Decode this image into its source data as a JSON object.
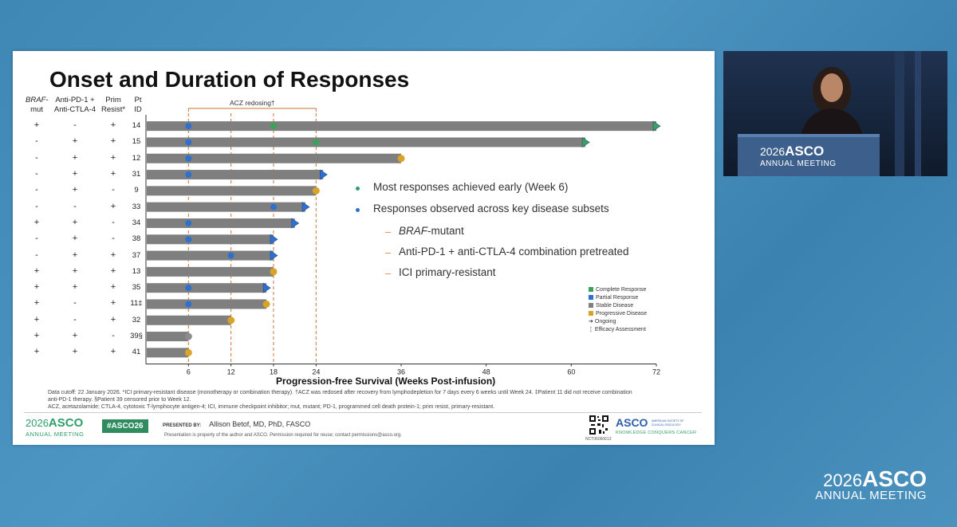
{
  "slide": {
    "title": "Onset and Duration of Responses",
    "col_headers": {
      "braf": [
        "BRAF-",
        "mut"
      ],
      "antipd1": [
        "Anti-PD-1 +",
        "Anti-CTLA-4"
      ],
      "prim": [
        "Prim",
        "Resist*"
      ],
      "pt": [
        "Pt",
        "ID"
      ]
    },
    "redosing_label": "ACZ redosing†",
    "bullets": [
      "Most responses achieved early (Week 6)",
      "Responses observed across key disease subsets"
    ],
    "sub_bullets": [
      "BRAF-mutant",
      "Anti-PD-1 + anti-CTLA-4 combination pretreated",
      "ICI primary-resistant"
    ],
    "legend": [
      {
        "label": "Complete Response",
        "color": "#3aa35b"
      },
      {
        "label": "Partial Response",
        "color": "#2f6fce"
      },
      {
        "label": "Stable Disease",
        "color": "#7f7f7f"
      },
      {
        "label": "Progressive Disease",
        "color": "#d9a325"
      },
      {
        "label": "Ongoing",
        "symbol": "arrow"
      },
      {
        "label": "Efficacy Assessment",
        "symbol": "tick"
      }
    ],
    "footnotes": [
      "Data cutoff: 22 January 2026. *ICI primary-resistant disease (monotherapy or combination therapy). †ACZ was redosed after recovery from lymphodepletion for 7 days every 6 weeks until Week 24. ‡Patient 11 did not receive combination",
      "anti-PD-1 therapy. §Patient 39 censored prior to Week 12.",
      "ACZ, acetazolamide; CTLA-4, cytotoxic T-lymphocyte antigen-4; ICI, immune checkpoint inhibitor; mut, mutant; PD-1, programmed cell death protein-1; prim resist, primary-resistant."
    ],
    "brand_year": "2026",
    "brand_name": "ASCO",
    "brand_sub": "ANNUAL MEETING",
    "hashtag": "#ASCO26",
    "presented_by_label": "PRESENTED BY:",
    "presenter": "Allison Betof, MD, PhD, FASCO",
    "property_note": "Presentation is property of the author and ASCO. Permission required for reuse; contact permissions@asco.org.",
    "nct": "NCT06060613",
    "asco_logo_text": "ASCO",
    "asco_logo_small": "AMERICAN SOCIETY OF CLINICAL ONCOLOGY",
    "asco_tagline": "KNOWLEDGE CONQUERS CANCER"
  },
  "video": {
    "podium_year": "2026",
    "podium_name": "ASCO",
    "podium_sub": "ANNUAL MEETING"
  },
  "corner_brand": {
    "year": "2026",
    "name": "ASCO",
    "sub": "ANNUAL MEETING"
  },
  "chart_data": {
    "type": "bar",
    "orientation": "horizontal",
    "xlabel": "Progression-free Survival (Weeks Post-infusion)",
    "x_ticks": [
      6,
      12,
      18,
      24,
      36,
      48,
      60,
      72
    ],
    "xlim": [
      0,
      72
    ],
    "reference_lines": [
      6,
      12,
      18,
      24
    ],
    "patients": [
      {
        "id": "14",
        "braf": "+",
        "antipd1": "-",
        "prim": "+",
        "pfs": 72,
        "ongoing": true,
        "outcome": "CR",
        "events": [
          {
            "t": 6,
            "type": "PR"
          },
          {
            "t": 18,
            "type": "CR"
          }
        ]
      },
      {
        "id": "15",
        "braf": "-",
        "antipd1": "+",
        "prim": "+",
        "pfs": 62,
        "ongoing": true,
        "outcome": "CR",
        "events": [
          {
            "t": 6,
            "type": "PR"
          },
          {
            "t": 24,
            "type": "CR"
          }
        ]
      },
      {
        "id": "12",
        "braf": "-",
        "antipd1": "+",
        "prim": "+",
        "pfs": 36,
        "ongoing": false,
        "outcome": "PD",
        "events": [
          {
            "t": 6,
            "type": "PR"
          }
        ]
      },
      {
        "id": "31",
        "braf": "-",
        "antipd1": "+",
        "prim": "+",
        "pfs": 25,
        "ongoing": true,
        "outcome": "PR",
        "events": [
          {
            "t": 6,
            "type": "PR"
          }
        ]
      },
      {
        "id": "9",
        "braf": "-",
        "antipd1": "+",
        "prim": "-",
        "pfs": 24,
        "ongoing": false,
        "outcome": "PD",
        "events": []
      },
      {
        "id": "33",
        "braf": "-",
        "antipd1": "-",
        "prim": "+",
        "pfs": 22.5,
        "ongoing": true,
        "outcome": "PR",
        "events": [
          {
            "t": 18,
            "type": "PR"
          }
        ]
      },
      {
        "id": "34",
        "braf": "+",
        "antipd1": "+",
        "prim": "-",
        "pfs": 21,
        "ongoing": true,
        "outcome": "PR",
        "events": [
          {
            "t": 6,
            "type": "PR"
          }
        ]
      },
      {
        "id": "38",
        "braf": "-",
        "antipd1": "+",
        "prim": "-",
        "pfs": 18,
        "ongoing": true,
        "outcome": "PR",
        "events": [
          {
            "t": 6,
            "type": "PR"
          }
        ]
      },
      {
        "id": "37",
        "braf": "-",
        "antipd1": "+",
        "prim": "+",
        "pfs": 18,
        "ongoing": true,
        "outcome": "PR",
        "events": [
          {
            "t": 12,
            "type": "PR"
          }
        ]
      },
      {
        "id": "13",
        "braf": "+",
        "antipd1": "+",
        "prim": "+",
        "pfs": 18,
        "ongoing": false,
        "outcome": "PD",
        "events": []
      },
      {
        "id": "35",
        "braf": "+",
        "antipd1": "+",
        "prim": "+",
        "pfs": 17,
        "ongoing": true,
        "outcome": "PR",
        "events": [
          {
            "t": 6,
            "type": "PR"
          }
        ]
      },
      {
        "id": "11‡",
        "braf": "+",
        "antipd1": "-",
        "prim": "+",
        "pfs": 17,
        "ongoing": false,
        "outcome": "PD",
        "events": [
          {
            "t": 6,
            "type": "PR"
          }
        ]
      },
      {
        "id": "32",
        "braf": "+",
        "antipd1": "-",
        "prim": "+",
        "pfs": 12,
        "ongoing": false,
        "outcome": "PD",
        "events": []
      },
      {
        "id": "39§",
        "braf": "+",
        "antipd1": "+",
        "prim": "-",
        "pfs": 6,
        "ongoing": false,
        "outcome": "SD",
        "events": []
      },
      {
        "id": "41",
        "braf": "+",
        "antipd1": "+",
        "prim": "+",
        "pfs": 6,
        "ongoing": false,
        "outcome": "PD",
        "events": []
      }
    ],
    "colors": {
      "CR": "#3aa35b",
      "PR": "#2f6fce",
      "SD": "#8c8c8c",
      "PD": "#d9a325",
      "bar": "#7f7f7f",
      "ref": "#c9763c"
    }
  }
}
